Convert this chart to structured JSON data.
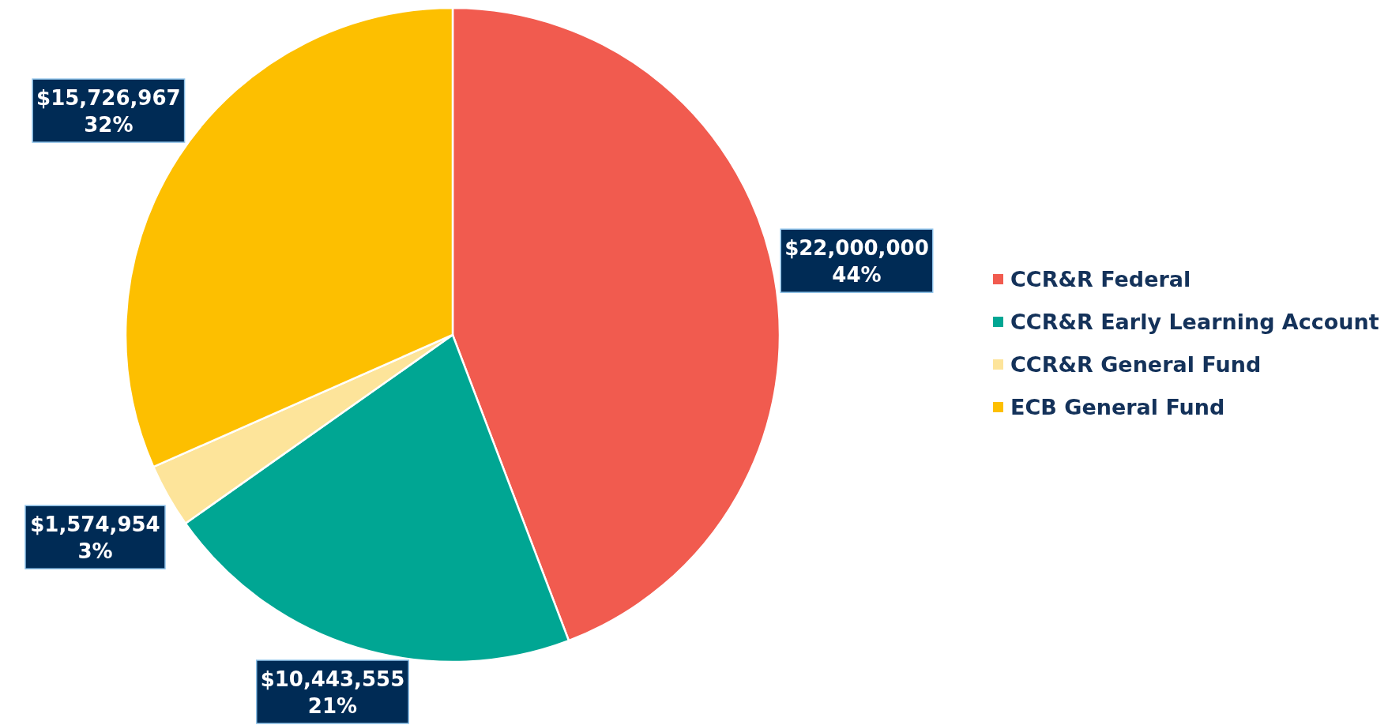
{
  "chart_data": {
    "type": "pie",
    "categories": [
      "CCR&R Federal",
      "CCR&R Early Learning Account",
      "CCR&R General Fund",
      "ECB General Fund"
    ],
    "values": [
      22000000,
      10443555,
      1574954,
      15726967
    ],
    "colors": [
      "#f15b4f",
      "#00a693",
      "#fde49a",
      "#fdbf00"
    ],
    "value_labels": [
      "$22,000,000\n44%",
      "$10,443,555\n21%",
      "$1,574,954\n3%",
      "$15,726,967\n32%"
    ],
    "legend": "right"
  }
}
